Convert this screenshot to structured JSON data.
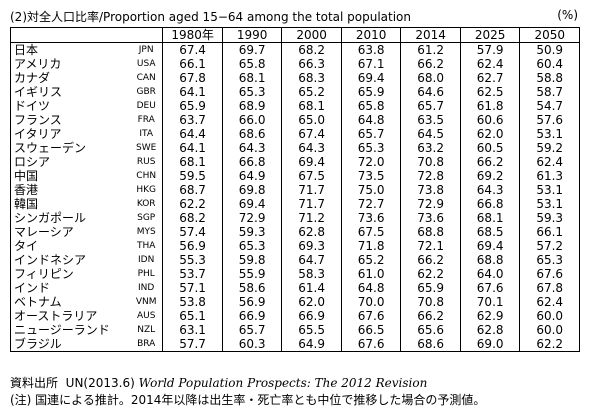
{
  "title": "(2)対全人口比率/Proportion aged 15−64 among the total population",
  "unit": "(%)",
  "table": {
    "header": [
      "1980年",
      "1990",
      "2000",
      "2010",
      "2014",
      "2025",
      "2050"
    ],
    "rows": [
      [
        "日本",
        "JPN",
        "67.4",
        "69.7",
        "68.2",
        "63.8",
        "61.2",
        "57.9",
        "50.9"
      ],
      [
        "アメリカ",
        "USA",
        "66.1",
        "65.8",
        "66.3",
        "67.1",
        "66.2",
        "62.4",
        "60.4"
      ],
      [
        "カナダ",
        "CAN",
        "67.8",
        "68.1",
        "68.3",
        "69.4",
        "68.0",
        "62.7",
        "58.8"
      ],
      [
        "イギリス",
        "GBR",
        "64.1",
        "65.3",
        "65.2",
        "65.9",
        "64.6",
        "62.5",
        "58.7"
      ],
      [
        "ドイツ",
        "DEU",
        "65.9",
        "68.9",
        "68.1",
        "65.8",
        "65.7",
        "61.8",
        "54.7"
      ],
      [
        "フランス",
        "FRA",
        "63.7",
        "66.0",
        "65.0",
        "64.8",
        "63.5",
        "60.6",
        "57.6"
      ],
      [
        "イタリア",
        "ITA",
        "64.4",
        "68.6",
        "67.4",
        "65.7",
        "64.5",
        "62.0",
        "53.1"
      ],
      [
        "スウェーデン",
        "SWE",
        "64.1",
        "64.3",
        "64.3",
        "65.3",
        "63.2",
        "60.5",
        "59.2"
      ],
      [
        "ロシア",
        "RUS",
        "68.1",
        "66.8",
        "69.4",
        "72.0",
        "70.8",
        "66.2",
        "62.4"
      ],
      [
        "中国",
        "CHN",
        "59.5",
        "64.9",
        "67.5",
        "73.5",
        "72.8",
        "69.2",
        "61.3"
      ],
      [
        "香港",
        "HKG",
        "68.7",
        "69.8",
        "71.7",
        "75.0",
        "73.8",
        "64.3",
        "53.1"
      ],
      [
        "韓国",
        "KOR",
        "62.2",
        "69.4",
        "71.7",
        "72.7",
        "72.9",
        "66.8",
        "53.1"
      ],
      [
        "シンガポール",
        "SGP",
        "68.2",
        "72.9",
        "71.2",
        "73.6",
        "73.6",
        "68.1",
        "59.3"
      ],
      [
        "マレーシア",
        "MYS",
        "57.4",
        "59.3",
        "62.8",
        "67.5",
        "68.8",
        "68.5",
        "66.1"
      ],
      [
        "タイ",
        "THA",
        "56.9",
        "65.3",
        "69.3",
        "71.8",
        "72.1",
        "69.4",
        "57.2"
      ],
      [
        "インドネシア",
        "IDN",
        "55.3",
        "59.8",
        "64.7",
        "65.2",
        "66.2",
        "68.8",
        "65.3"
      ],
      [
        "フィリピン",
        "PHL",
        "53.7",
        "55.9",
        "58.3",
        "61.0",
        "62.2",
        "64.0",
        "67.6"
      ],
      [
        "インド",
        "IND",
        "57.1",
        "58.6",
        "61.4",
        "64.8",
        "65.9",
        "67.6",
        "67.8"
      ],
      [
        "ベトナム",
        "VNM",
        "53.8",
        "56.9",
        "62.0",
        "70.0",
        "70.8",
        "70.1",
        "62.4"
      ],
      [
        "オーストラリア",
        "AUS",
        "65.1",
        "66.9",
        "66.9",
        "67.6",
        "66.2",
        "62.9",
        "60.0"
      ],
      [
        "ニュージーランド",
        "NZL",
        "63.1",
        "65.7",
        "65.5",
        "66.5",
        "65.6",
        "62.8",
        "60.0"
      ],
      [
        "ブラジル",
        "BRA",
        "57.7",
        "60.3",
        "64.9",
        "67.6",
        "68.6",
        "69.0",
        "62.2"
      ]
    ]
  },
  "source": {
    "label": "資料出所",
    "org": "UN(2013.6)",
    "work": "World Population Prospects: The 2012 Revision"
  },
  "note": "(注) 国連による推計。2014年以降は出生率・死亡率とも中位で推移した場合の予測値。"
}
